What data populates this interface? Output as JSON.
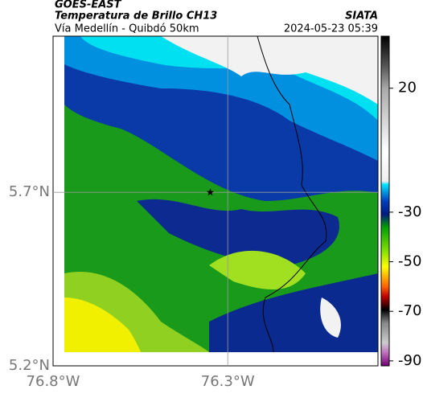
{
  "header": {
    "source": "GOES-EAST",
    "title": "Temperatura de Brillo CH13",
    "subtitle": "Vía Medellín - Quibdó 50km",
    "brand": "SIATA",
    "timestamp": "2024-05-23 05:39"
  },
  "map": {
    "xlim": [
      -76.8,
      -75.87
    ],
    "ylim": [
      5.2,
      6.15
    ],
    "xticks": [
      {
        "value": -76.8,
        "label": "76.8°W"
      },
      {
        "value": -76.3,
        "label": "76.3°W"
      }
    ],
    "yticks": [
      {
        "value": 5.2,
        "label": "5.2°N"
      },
      {
        "value": 5.7,
        "label": "5.7°N"
      }
    ],
    "marker": {
      "lon": -76.35,
      "lat": 5.7
    }
  },
  "colorbar": {
    "lim": [
      -92,
      41
    ],
    "ticks": [
      20,
      -30,
      -50,
      -70,
      -90
    ]
  }
}
